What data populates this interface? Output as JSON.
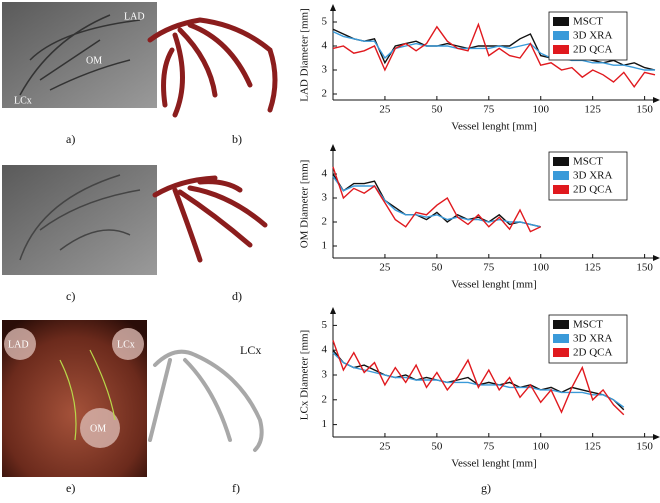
{
  "figure": {
    "panel_labels": [
      "a)",
      "b)",
      "c)",
      "d)",
      "e)",
      "f)",
      "g)"
    ],
    "annotations": {
      "a": [
        "LAD",
        "OM",
        "LCx"
      ],
      "e": [
        "LAD",
        "LCx",
        "OM"
      ],
      "f": [
        "LCx"
      ]
    }
  },
  "chart_data": [
    {
      "type": "line",
      "ylabel": "LAD Diameter [mm]",
      "xlabel": "Vessel lenght [mm]",
      "legend": "upper right",
      "xlim": [
        0,
        155
      ],
      "ylim": [
        1.75,
        5.5
      ],
      "xticks": [
        25,
        50,
        75,
        100,
        125,
        150
      ],
      "yticks": [
        2,
        3,
        4,
        5
      ],
      "x": [
        0,
        5,
        10,
        15,
        20,
        25,
        30,
        35,
        40,
        45,
        50,
        55,
        60,
        65,
        70,
        75,
        80,
        85,
        90,
        95,
        100,
        105,
        110,
        115,
        120,
        125,
        130,
        135,
        140,
        145,
        150,
        155
      ],
      "series": [
        {
          "name": "MSCT",
          "color": "#111111",
          "values": [
            4.7,
            4.5,
            4.3,
            4.2,
            4.3,
            3.3,
            4.0,
            4.1,
            4.2,
            4.0,
            4.0,
            4.1,
            4.0,
            3.9,
            4.0,
            4.0,
            4.0,
            4.0,
            4.3,
            4.5,
            3.6,
            3.5,
            3.6,
            3.4,
            3.5,
            3.4,
            3.3,
            3.4,
            3.2,
            3.3,
            3.1,
            3.0
          ]
        },
        {
          "name": "3D XRA",
          "color": "#3a9ad9",
          "values": [
            4.6,
            4.4,
            4.3,
            4.2,
            4.2,
            3.5,
            3.9,
            4.0,
            4.1,
            4.0,
            4.0,
            4.0,
            3.9,
            3.9,
            3.9,
            3.9,
            4.0,
            3.9,
            4.0,
            4.1,
            3.7,
            3.5,
            3.5,
            3.4,
            3.4,
            3.3,
            3.3,
            3.2,
            3.2,
            3.1,
            3.0,
            3.0
          ]
        },
        {
          "name": "2D QCA",
          "color": "#e0191e",
          "values": [
            3.9,
            4.0,
            3.7,
            3.8,
            4.0,
            3.0,
            3.9,
            4.1,
            3.8,
            4.1,
            4.8,
            4.2,
            3.9,
            3.8,
            4.9,
            3.6,
            3.9,
            3.6,
            3.5,
            4.1,
            3.2,
            3.3,
            3.0,
            3.1,
            2.7,
            3.0,
            2.8,
            2.5,
            2.9,
            2.3,
            2.9,
            2.8
          ]
        }
      ]
    },
    {
      "type": "line",
      "ylabel": "OM Diameter [mm]",
      "xlabel": "Vessel lenght [mm]",
      "legend": "upper right",
      "xlim": [
        0,
        155
      ],
      "ylim": [
        0.5,
        5
      ],
      "xticks": [
        25,
        50,
        75,
        100,
        125,
        150
      ],
      "yticks": [
        1,
        2,
        3,
        4
      ],
      "x": [
        0,
        5,
        10,
        15,
        20,
        25,
        30,
        35,
        40,
        45,
        50,
        55,
        60,
        65,
        70,
        75,
        80,
        85,
        90,
        95,
        100
      ],
      "series": [
        {
          "name": "MSCT",
          "color": "#111111",
          "values": [
            4.0,
            3.3,
            3.6,
            3.6,
            3.7,
            2.9,
            2.6,
            2.3,
            2.3,
            2.1,
            2.4,
            2.0,
            2.3,
            2.1,
            2.2,
            2.0,
            2.3,
            1.9,
            2.0,
            1.9,
            1.8
          ]
        },
        {
          "name": "3D XRA",
          "color": "#3a9ad9",
          "values": [
            3.9,
            3.3,
            3.5,
            3.5,
            3.5,
            2.9,
            2.5,
            2.3,
            2.3,
            2.2,
            2.3,
            2.1,
            2.2,
            2.1,
            2.1,
            2.0,
            2.1,
            2.0,
            2.0,
            1.9,
            1.8
          ]
        },
        {
          "name": "2D QCA",
          "color": "#e0191e",
          "values": [
            4.3,
            3.0,
            3.4,
            3.2,
            3.5,
            2.8,
            2.1,
            1.8,
            2.4,
            2.3,
            2.7,
            3.0,
            2.2,
            1.9,
            2.3,
            1.8,
            2.2,
            1.7,
            2.5,
            1.6,
            1.8
          ]
        }
      ]
    },
    {
      "type": "line",
      "ylabel": "LCx Diameter [mm]",
      "xlabel": "Vessel lenght [mm]",
      "legend": "upper right",
      "xlim": [
        0,
        155
      ],
      "ylim": [
        0.5,
        5.5
      ],
      "xticks": [
        25,
        50,
        75,
        100,
        125,
        150
      ],
      "yticks": [
        1,
        2,
        3,
        4,
        5
      ],
      "x": [
        0,
        5,
        10,
        15,
        20,
        25,
        30,
        35,
        40,
        45,
        50,
        55,
        60,
        65,
        70,
        75,
        80,
        85,
        90,
        95,
        100,
        105,
        110,
        115,
        120,
        125,
        130,
        135,
        140
      ],
      "series": [
        {
          "name": "MSCT",
          "color": "#111111",
          "values": [
            4.0,
            3.5,
            3.3,
            3.4,
            3.2,
            3.0,
            2.9,
            3.0,
            2.8,
            2.9,
            2.8,
            2.7,
            2.8,
            2.9,
            2.6,
            2.7,
            2.6,
            2.7,
            2.5,
            2.6,
            2.4,
            2.5,
            2.3,
            2.5,
            2.4,
            2.3,
            2.2,
            2.0,
            1.6
          ]
        },
        {
          "name": "3D XRA",
          "color": "#3a9ad9",
          "values": [
            3.9,
            3.5,
            3.3,
            3.2,
            3.1,
            3.0,
            2.9,
            2.9,
            2.8,
            2.8,
            2.8,
            2.7,
            2.7,
            2.7,
            2.6,
            2.6,
            2.6,
            2.5,
            2.5,
            2.5,
            2.4,
            2.4,
            2.3,
            2.3,
            2.3,
            2.2,
            2.2,
            2.0,
            1.7
          ]
        },
        {
          "name": "2D QCA",
          "color": "#e0191e",
          "values": [
            4.4,
            3.2,
            3.9,
            3.1,
            3.5,
            2.6,
            3.3,
            2.7,
            3.4,
            2.5,
            3.1,
            2.4,
            2.9,
            3.6,
            2.5,
            3.2,
            2.4,
            2.9,
            2.1,
            2.6,
            1.9,
            2.4,
            1.5,
            2.5,
            3.3,
            2.0,
            2.4,
            1.8,
            1.4
          ]
        }
      ]
    }
  ]
}
